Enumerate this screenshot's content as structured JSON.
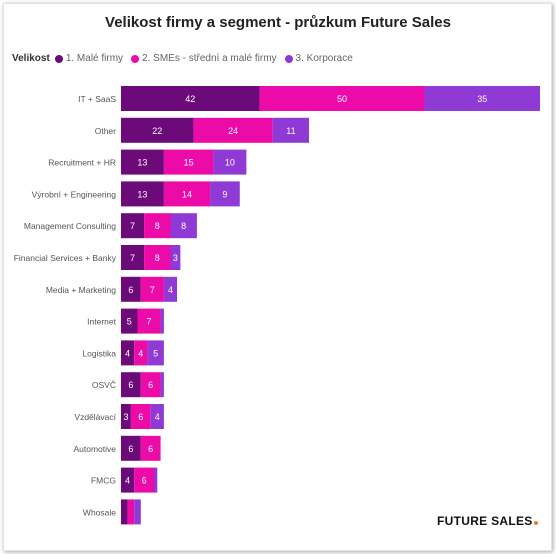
{
  "chart_data": {
    "type": "bar",
    "orientation": "horizontal",
    "stacked": true,
    "title": "Velikost firmy a segment - průzkum Future Sales",
    "legend_title": "Velikost",
    "legend_position": "top-left",
    "grid": false,
    "categories": [
      "IT + SaaS",
      "Other",
      "Recruitment + HR",
      "Výrobní + Engineering",
      "Management Consulting",
      "Financial Services + Banky",
      "Media + Marketing",
      "Internet",
      "Logistika",
      "OSVČ",
      "Vzdělávací",
      "Automotive",
      "FMCG",
      "Whosale"
    ],
    "series": [
      {
        "name": "1. Malé firmy",
        "color": "#6d0a79",
        "values": [
          42,
          22,
          13,
          13,
          7,
          7,
          6,
          5,
          4,
          6,
          3,
          6,
          4,
          2
        ]
      },
      {
        "name": "2. SMEs - střední a malé firmy",
        "color": "#ec0aa8",
        "values": [
          50,
          24,
          15,
          14,
          8,
          8,
          7,
          7,
          4,
          6,
          6,
          6,
          6,
          2
        ]
      },
      {
        "name": "3. Korporace",
        "color": "#8f3ad4",
        "values": [
          35,
          11,
          10,
          9,
          8,
          3,
          4,
          1,
          5,
          1,
          4,
          0,
          1,
          2
        ]
      }
    ],
    "data_labels": [
      [
        "42",
        "50",
        "35"
      ],
      [
        "22",
        "24",
        "11"
      ],
      [
        "13",
        "15",
        "10"
      ],
      [
        "13",
        "14",
        "9"
      ],
      [
        "7",
        "8",
        "8"
      ],
      [
        "7",
        "8",
        "3"
      ],
      [
        "6",
        "7",
        "4"
      ],
      [
        "5",
        "7",
        ""
      ],
      [
        "4",
        "4",
        "5"
      ],
      [
        "6",
        "6",
        ""
      ],
      [
        "3",
        "6",
        "4"
      ],
      [
        "6",
        "6",
        ""
      ],
      [
        "4",
        "6",
        ""
      ],
      [
        "",
        "",
        ""
      ]
    ],
    "xlim": [
      0,
      127
    ]
  },
  "brand": "FUTURE SALES"
}
